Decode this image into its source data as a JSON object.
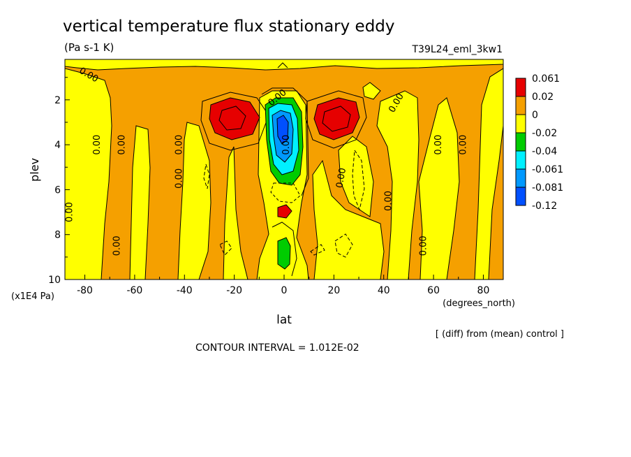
{
  "header": {
    "title": "vertical temperature flux stationary eddy",
    "units": "(Pa s-1 K)",
    "run_id": "T39L24_eml_3kw1"
  },
  "footer": {
    "diff_note": "[ (diff) from (mean) control ]",
    "contour_interval": "CONTOUR INTERVAL = 1.012E-02"
  },
  "chart_data": {
    "type": "heatmap",
    "title": "vertical temperature flux stationary eddy",
    "subtitle": "(Pa s-1 K)",
    "xlabel": "lat",
    "xunits": "(degrees_north)",
    "ylabel": "plev",
    "yunits": "(x1E4 Pa)",
    "xlim": [
      -88,
      88
    ],
    "ylim": [
      10,
      0.2
    ],
    "x_ticks": [
      -80,
      -60,
      -40,
      -20,
      0,
      20,
      40,
      60,
      80
    ],
    "y_ticks": [
      2,
      4,
      6,
      8,
      10
    ],
    "contour_interval": 0.01012,
    "contour_label": "0.00",
    "legend": {
      "levels": [
        "0.061",
        "0.02",
        "0",
        "-0.02",
        "-0.04",
        "-0.061",
        "-0.081",
        "-0.12"
      ],
      "colors": [
        "#e60000",
        "#f5a000",
        "#ffff00",
        "#00cc00",
        "#00f0ff",
        "#0099ff",
        "#0050ff"
      ]
    },
    "features": [
      {
        "name": "positive-max-south",
        "lat": -22,
        "plev": 2.8,
        "category": "0.061"
      },
      {
        "name": "positive-max-north",
        "lat": 22,
        "plev": 2.8,
        "category": "0.061"
      },
      {
        "name": "negative-min-equator",
        "lat": 0,
        "plev": 3.3,
        "category": "-0.12"
      },
      {
        "name": "positive-max-equator-lower",
        "lat": 0,
        "plev": 7.0,
        "category": "0.061"
      },
      {
        "name": "negative-min-equator-lower",
        "lat": 0,
        "plev": 8.9,
        "category": "-0.04"
      }
    ]
  }
}
